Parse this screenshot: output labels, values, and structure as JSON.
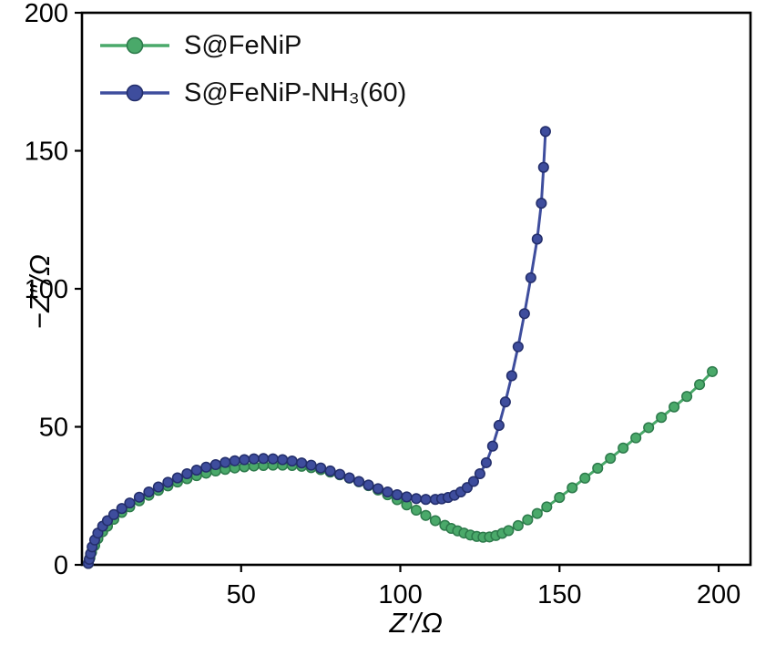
{
  "figure": {
    "background": "#ffffff",
    "frame_color": "#000000"
  },
  "chart_data": {
    "type": "line",
    "title": "",
    "xlabel": "Z′/Ω",
    "ylabel": "−Z″/Ω",
    "xlim": [
      0,
      210
    ],
    "ylim": [
      0,
      200
    ],
    "xticks": [
      50,
      100,
      150,
      200
    ],
    "yticks": [
      0,
      50,
      100,
      150,
      200
    ],
    "grid": false,
    "legend_position": "top-left",
    "series": [
      {
        "name": "S@FeNiP",
        "color": "#4aa96a",
        "edge_color": "#2d7a4b",
        "points": [
          [
            2,
            0.5
          ],
          [
            2.5,
            2.5
          ],
          [
            3,
            4.5
          ],
          [
            4,
            7
          ],
          [
            5,
            9.5
          ],
          [
            6.5,
            12
          ],
          [
            8,
            14
          ],
          [
            10,
            16.5
          ],
          [
            12.5,
            19
          ],
          [
            15,
            21
          ],
          [
            18,
            23.2
          ],
          [
            21,
            25.2
          ],
          [
            24,
            27
          ],
          [
            27,
            28.6
          ],
          [
            30,
            30
          ],
          [
            33,
            31.2
          ],
          [
            36,
            32.3
          ],
          [
            39,
            33.2
          ],
          [
            42,
            34
          ],
          [
            45,
            34.6
          ],
          [
            48,
            35.1
          ],
          [
            51,
            35.5
          ],
          [
            54,
            35.8
          ],
          [
            57,
            36
          ],
          [
            60,
            36.1
          ],
          [
            63,
            36.1
          ],
          [
            66,
            36
          ],
          [
            69,
            35.7
          ],
          [
            72,
            35.2
          ],
          [
            75,
            34.5
          ],
          [
            78,
            33.6
          ],
          [
            81,
            32.6
          ],
          [
            84,
            31.4
          ],
          [
            87,
            30.1
          ],
          [
            90,
            28.7
          ],
          [
            93,
            27.1
          ],
          [
            96,
            25.4
          ],
          [
            99,
            23.6
          ],
          [
            102,
            21.7
          ],
          [
            105,
            19.8
          ],
          [
            108,
            17.9
          ],
          [
            111,
            16
          ],
          [
            114,
            14.3
          ],
          [
            116,
            13.2
          ],
          [
            118,
            12.3
          ],
          [
            120,
            11.5
          ],
          [
            122,
            10.8
          ],
          [
            124,
            10.3
          ],
          [
            126,
            10
          ],
          [
            128,
            10.1
          ],
          [
            130,
            10.6
          ],
          [
            132,
            11.4
          ],
          [
            134,
            12.4
          ],
          [
            137,
            14.2
          ],
          [
            140,
            16.3
          ],
          [
            143,
            18.6
          ],
          [
            146,
            21
          ],
          [
            150,
            24.4
          ],
          [
            154,
            27.9
          ],
          [
            158,
            31.4
          ],
          [
            162,
            35
          ],
          [
            166,
            38.6
          ],
          [
            170,
            42.3
          ],
          [
            174,
            46
          ],
          [
            178,
            49.7
          ],
          [
            182,
            53.4
          ],
          [
            186,
            57.2
          ],
          [
            190,
            61
          ],
          [
            194,
            65.3
          ],
          [
            198,
            70
          ]
        ]
      },
      {
        "name": "S@FeNiP-NH₃(60)",
        "color": "#3e4d9d",
        "edge_color": "#232e6b",
        "points": [
          [
            2,
            0.5
          ],
          [
            2.3,
            2
          ],
          [
            2.7,
            4
          ],
          [
            3.2,
            6.5
          ],
          [
            4,
            9
          ],
          [
            5,
            11.5
          ],
          [
            6.5,
            14
          ],
          [
            8,
            16
          ],
          [
            10,
            18.2
          ],
          [
            12.5,
            20.4
          ],
          [
            15,
            22.4
          ],
          [
            18,
            24.5
          ],
          [
            21,
            26.4
          ],
          [
            24,
            28.2
          ],
          [
            27,
            29.9
          ],
          [
            30,
            31.5
          ],
          [
            33,
            33
          ],
          [
            36,
            34.3
          ],
          [
            39,
            35.4
          ],
          [
            42,
            36.3
          ],
          [
            45,
            37.1
          ],
          [
            48,
            37.7
          ],
          [
            51,
            38.1
          ],
          [
            54,
            38.4
          ],
          [
            57,
            38.5
          ],
          [
            60,
            38.4
          ],
          [
            63,
            38.1
          ],
          [
            66,
            37.6
          ],
          [
            69,
            36.9
          ],
          [
            72,
            36.1
          ],
          [
            75,
            35.1
          ],
          [
            78,
            34
          ],
          [
            81,
            32.8
          ],
          [
            84,
            31.5
          ],
          [
            87,
            30.2
          ],
          [
            90,
            28.9
          ],
          [
            93,
            27.6
          ],
          [
            96,
            26.4
          ],
          [
            99,
            25.4
          ],
          [
            102,
            24.6
          ],
          [
            105,
            24
          ],
          [
            108,
            23.7
          ],
          [
            111,
            23.7
          ],
          [
            113,
            23.9
          ],
          [
            115,
            24.4
          ],
          [
            117,
            25.2
          ],
          [
            119,
            26.4
          ],
          [
            121,
            28
          ],
          [
            123,
            30.2
          ],
          [
            125,
            33
          ],
          [
            127,
            37
          ],
          [
            129,
            43
          ],
          [
            131,
            50.5
          ],
          [
            133,
            59
          ],
          [
            135,
            68.5
          ],
          [
            137,
            79
          ],
          [
            139,
            91
          ],
          [
            141,
            104
          ],
          [
            143,
            118
          ],
          [
            144.3,
            131
          ],
          [
            145,
            144
          ],
          [
            145.6,
            157
          ]
        ]
      }
    ]
  }
}
